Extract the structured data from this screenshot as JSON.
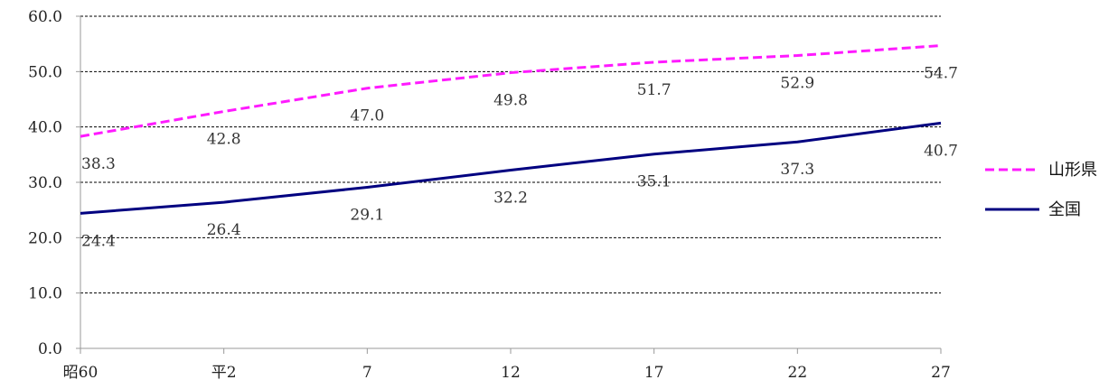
{
  "chart_data": {
    "type": "line",
    "categories": [
      "昭60",
      "平2",
      "7",
      "12",
      "17",
      "22",
      "27"
    ],
    "series": [
      {
        "name": "山形県",
        "values": [
          38.3,
          42.8,
          47.0,
          49.8,
          51.7,
          52.9,
          54.7
        ],
        "labels": [
          "38.3",
          "42.8",
          "47.0",
          "49.8",
          "51.7",
          "52.9",
          "54.7"
        ],
        "color": "#ff1aff",
        "dashed": true
      },
      {
        "name": "全国",
        "values": [
          24.4,
          26.4,
          29.1,
          32.2,
          35.1,
          37.3,
          40.7
        ],
        "labels": [
          "24.4",
          "26.4",
          "29.1",
          "32.2",
          "35.1",
          "37.3",
          "40.7"
        ],
        "color": "#000080",
        "dashed": false
      }
    ],
    "yticks": [
      "0.0",
      "10.0",
      "20.0",
      "30.0",
      "40.0",
      "50.0",
      "60.0"
    ],
    "ylim": [
      0,
      60
    ],
    "grid": true,
    "legend_position": "right"
  }
}
